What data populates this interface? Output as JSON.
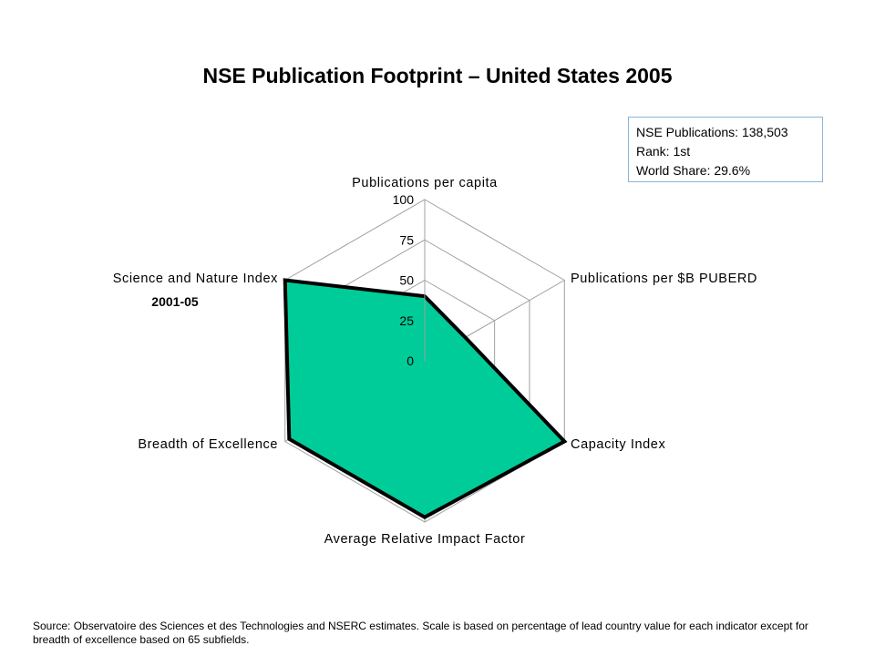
{
  "title": "NSE Publication Footprint – United States 2005",
  "infobox": {
    "line1": "NSE Publications: 138,503",
    "line2": "Rank: 1st",
    "line3": "World Share: 29.6%"
  },
  "chart_data": {
    "type": "radar",
    "axes": [
      "Publications per capita",
      "Publications per $B PUBERD",
      "Capacity Index",
      "Average Relative Impact Factor",
      "Breadth of Excellence",
      "Science and Nature Index"
    ],
    "axis_sublabels": {
      "Science and Nature Index": "2001-05"
    },
    "ticks": [
      "0",
      "25",
      "50",
      "75",
      "100"
    ],
    "range": [
      0,
      100
    ],
    "values": [
      40,
      29,
      100,
      97,
      97,
      100
    ],
    "fill_color": "#00cc99",
    "outline_color": "#000000",
    "grid": true,
    "legend": "none"
  },
  "source": "Source: Observatoire des Sciences et des Technologies and NSERC estimates. Scale is based on percentage of lead country value for each indicator except for breadth of excellence based on 65 subfields."
}
